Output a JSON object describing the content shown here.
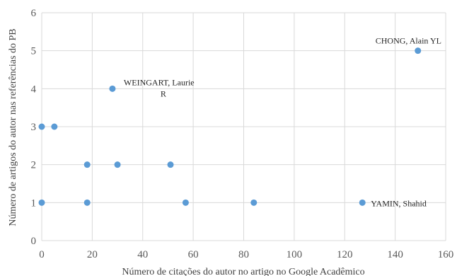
{
  "chart_data": {
    "type": "scatter",
    "title": "",
    "xlabel": "Número de citações do autor no artigo no Google Acadêmico",
    "ylabel": "Número de artigos do autor nas referências do PB",
    "xlim": [
      0,
      160
    ],
    "ylim": [
      0,
      6
    ],
    "xticks": [
      "0",
      "20",
      "40",
      "60",
      "80",
      "100",
      "120",
      "140",
      "160"
    ],
    "yticks": [
      "0",
      "1",
      "2",
      "3",
      "4",
      "5",
      "6"
    ],
    "grid": true,
    "marker_color": "#5b9bd5",
    "points": [
      {
        "x": 0,
        "y": 1
      },
      {
        "x": 18,
        "y": 1
      },
      {
        "x": 57,
        "y": 1
      },
      {
        "x": 84,
        "y": 1
      },
      {
        "x": 127,
        "y": 1
      },
      {
        "x": 18,
        "y": 2
      },
      {
        "x": 30,
        "y": 2
      },
      {
        "x": 51,
        "y": 2
      },
      {
        "x": 0,
        "y": 3
      },
      {
        "x": 5,
        "y": 3
      },
      {
        "x": 28,
        "y": 4
      },
      {
        "x": 149,
        "y": 5
      }
    ],
    "annotations": [
      {
        "lines": [
          "CHONG, Alain  YL"
        ],
        "x": 149,
        "y": 5
      },
      {
        "lines": [
          "WEINGART, Laurie",
          "R"
        ],
        "x": 28,
        "y": 4
      },
      {
        "lines": [
          "YAMIN,  Shahid"
        ],
        "x": 127,
        "y": 1
      }
    ]
  }
}
